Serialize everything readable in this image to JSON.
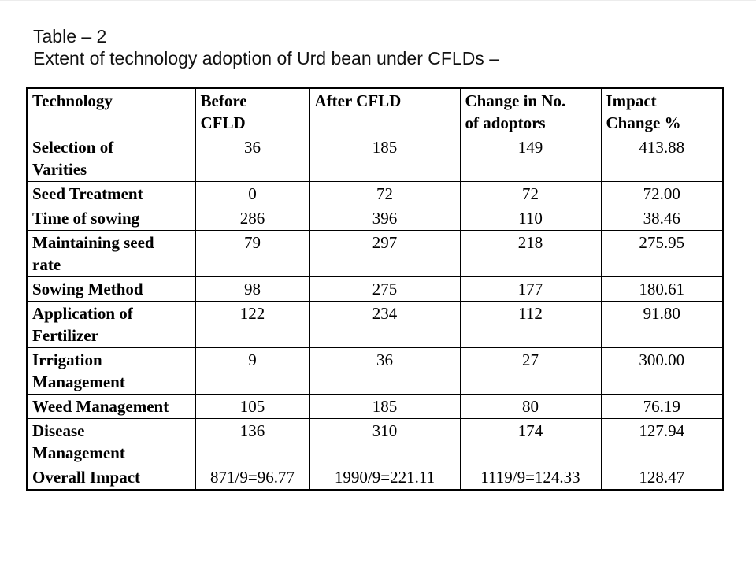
{
  "slide": {
    "title_line1": "Table – 2",
    "title_line2": "Extent of technology adoption of Urd bean under CFLDs –"
  },
  "table": {
    "columns": [
      "Technology",
      "Before\nCFLD",
      "After CFLD",
      "Change in No.\nof adoptors",
      "Impact\nChange %"
    ],
    "rows": [
      {
        "technology": "Selection of\nVarities",
        "before_cfld": "36",
        "after_cfld": "185",
        "change_in_adoptors": "149",
        "impact_change_pct": "413.88"
      },
      {
        "technology": "Seed Treatment",
        "before_cfld": "0",
        "after_cfld": "72",
        "change_in_adoptors": "72",
        "impact_change_pct": "72.00"
      },
      {
        "technology": "Time of sowing",
        "before_cfld": "286",
        "after_cfld": "396",
        "change_in_adoptors": "110",
        "impact_change_pct": "38.46"
      },
      {
        "technology": "Maintaining seed\nrate",
        "before_cfld": "79",
        "after_cfld": "297",
        "change_in_adoptors": "218",
        "impact_change_pct": "275.95"
      },
      {
        "technology": "Sowing Method",
        "before_cfld": "98",
        "after_cfld": "275",
        "change_in_adoptors": "177",
        "impact_change_pct": "180.61"
      },
      {
        "technology": "Application of\nFertilizer",
        "before_cfld": "122",
        "after_cfld": "234",
        "change_in_adoptors": "112",
        "impact_change_pct": "91.80"
      },
      {
        "technology": "Irrigation\nManagement",
        "before_cfld": "9",
        "after_cfld": "36",
        "change_in_adoptors": "27",
        "impact_change_pct": "300.00"
      },
      {
        "technology": "Weed Management",
        "before_cfld": "105",
        "after_cfld": "185",
        "change_in_adoptors": "80",
        "impact_change_pct": "76.19"
      },
      {
        "technology": "Disease\nManagement",
        "before_cfld": "136",
        "after_cfld": "310",
        "change_in_adoptors": "174",
        "impact_change_pct": "127.94"
      },
      {
        "technology": "Overall Impact",
        "before_cfld": "871/9=96.77",
        "after_cfld": "1990/9=221.11",
        "change_in_adoptors": "1119/9=124.33",
        "impact_change_pct": "128.47"
      }
    ]
  },
  "colors": {
    "text": "#000000",
    "border": "#000000",
    "background": "#ffffff"
  }
}
